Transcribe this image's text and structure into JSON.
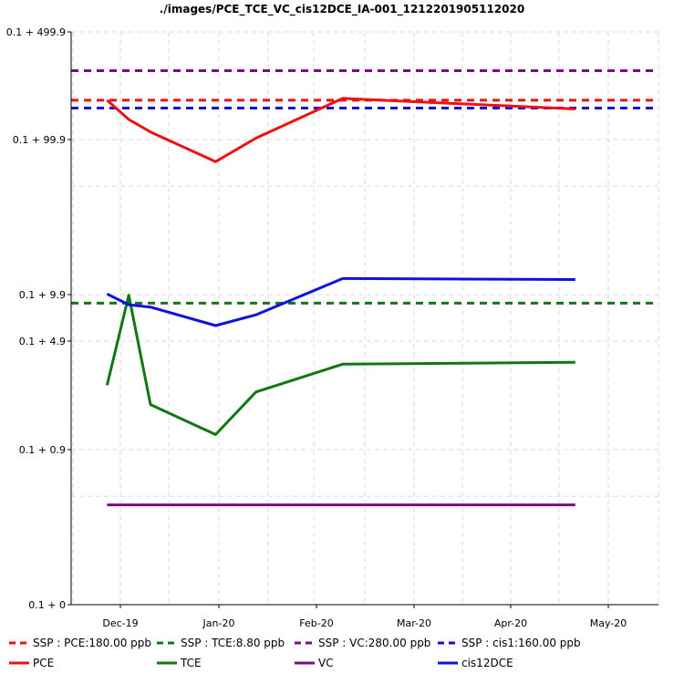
{
  "chart_data": {
    "type": "line",
    "title": "./images/PCE_TCE_VC_cis12DCE_IA-001_1212201905112020",
    "xlabel": "",
    "ylabel": "",
    "yscale": "log (offset 0.1)",
    "y_ticks": [
      {
        "label": "0.1 + 499.9",
        "value": 500
      },
      {
        "label": "0.1 + 99.9",
        "value": 100
      },
      {
        "label": "0.1 + 9.9",
        "value": 10
      },
      {
        "label": "0.1 + 4.9",
        "value": 5
      },
      {
        "label": "0.1 + 0.9",
        "value": 1
      },
      {
        "label": "0.1 + 0",
        "value": 0.1
      }
    ],
    "x_ticks": [
      {
        "label": "Dec-19",
        "date": "2019-12-01"
      },
      {
        "label": "Jan-20",
        "date": "2020-01-01"
      },
      {
        "label": "Feb-20",
        "date": "2020-02-01"
      },
      {
        "label": "Mar-20",
        "date": "2020-03-01"
      },
      {
        "label": "Apr-20",
        "date": "2020-04-01"
      },
      {
        "label": "May-20",
        "date": "2020-05-01"
      }
    ],
    "x_range": [
      "2019-11-22",
      "2020-05-20"
    ],
    "grid": true,
    "legend_position": "bottom",
    "series": [
      {
        "name": "PCE",
        "color": "#ee1111",
        "style": "solid",
        "points": [
          [
            "2019-12-12",
            180
          ],
          [
            "2019-12-19",
            135
          ],
          [
            "2019-12-26",
            112
          ],
          [
            "2020-01-16",
            72
          ],
          [
            "2020-01-29",
            102
          ],
          [
            "2020-02-26",
            185
          ],
          [
            "2020-05-11",
            158
          ]
        ]
      },
      {
        "name": "TCE",
        "color": "#117711",
        "style": "solid",
        "points": [
          [
            "2019-12-12",
            2.6
          ],
          [
            "2019-12-19",
            9.9
          ],
          [
            "2019-12-26",
            1.95
          ],
          [
            "2020-01-16",
            1.25
          ],
          [
            "2020-01-29",
            2.35
          ],
          [
            "2020-02-26",
            3.55
          ],
          [
            "2020-05-11",
            3.65
          ]
        ]
      },
      {
        "name": "VC",
        "color": "#7b0d83",
        "style": "solid",
        "points": [
          [
            "2019-12-12",
            0.44
          ],
          [
            "2020-05-11",
            0.44
          ]
        ]
      },
      {
        "name": "cis12DCE",
        "color": "#1111dd",
        "style": "solid",
        "points": [
          [
            "2019-12-12",
            10.1
          ],
          [
            "2019-12-19",
            8.6
          ],
          [
            "2019-12-26",
            8.3
          ],
          [
            "2020-01-16",
            6.3
          ],
          [
            "2020-01-29",
            7.4
          ],
          [
            "2020-02-26",
            12.7
          ],
          [
            "2020-05-11",
            12.5
          ]
        ]
      },
      {
        "name": "SSP : PCE:180.00 ppb",
        "color": "#ee1111",
        "style": "dashed",
        "value": 180
      },
      {
        "name": "SSP : TCE:8.80 ppb",
        "color": "#117711",
        "style": "dashed",
        "value": 8.8
      },
      {
        "name": "SSP : VC:280.00 ppb",
        "color": "#7b0d83",
        "style": "dashed",
        "value": 280
      },
      {
        "name": "SSP : cis1:160.00 ppb",
        "color": "#1111dd",
        "style": "dashed",
        "value": 160
      }
    ],
    "legend": [
      [
        "SSP : PCE:180.00 ppb",
        "SSP : TCE:8.80 ppb",
        "SSP : VC:280.00 ppb",
        "SSP : cis1:160.00 ppb"
      ],
      [
        "PCE",
        "TCE",
        "VC",
        "cis12DCE"
      ]
    ]
  }
}
